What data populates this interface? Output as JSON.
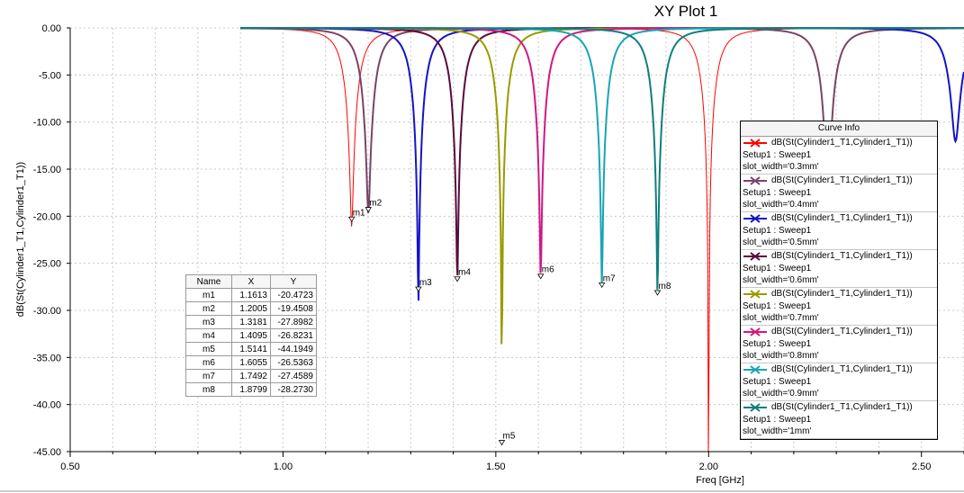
{
  "title": "XY Plot 1",
  "chart_data": {
    "type": "line",
    "xlabel": "Freq [GHz]",
    "ylabel": "dB(St(Cylinder1_T1,Cylinder1_T1))",
    "xlim": [
      0.5,
      2.6
    ],
    "ylim": [
      -45,
      0
    ],
    "x_ticks": [
      "0.50",
      "1.00",
      "1.50",
      "2.00",
      "2.50"
    ],
    "y_ticks": [
      "0.00",
      "-5.00",
      "-10.00",
      "-15.00",
      "-20.00",
      "-25.00",
      "-30.00",
      "-35.00",
      "-40.00",
      "-45.00"
    ],
    "grid": true,
    "x_start": 0.9,
    "x_end": 2.6,
    "series": [
      {
        "color": "#ff0000",
        "resonances": [
          {
            "f": 1.1613,
            "db": -20.4723
          },
          {
            "f": 2.0,
            "db": -33.0
          }
        ]
      },
      {
        "color": "#7a4466",
        "resonances": [
          {
            "f": 1.2005,
            "db": -19.4508
          },
          {
            "f": 2.28,
            "db": -22.0
          }
        ]
      },
      {
        "color": "#1414c8",
        "resonances": [
          {
            "f": 1.3181,
            "db": -27.8982
          },
          {
            "f": 2.58,
            "db": -12.0
          }
        ]
      },
      {
        "color": "#5a0a3c",
        "resonances": [
          {
            "f": 1.4095,
            "db": -26.8231
          }
        ]
      },
      {
        "color": "#9a9a00",
        "resonances": [
          {
            "f": 1.5141,
            "db": -44.1949
          }
        ]
      },
      {
        "color": "#d01882",
        "resonances": [
          {
            "f": 1.6055,
            "db": -26.5363
          }
        ]
      },
      {
        "color": "#18a6b4",
        "resonances": [
          {
            "f": 1.7492,
            "db": -27.4589
          }
        ]
      },
      {
        "color": "#107e7e",
        "resonances": [
          {
            "f": 1.8799,
            "db": -28.273
          }
        ]
      }
    ],
    "markers": [
      {
        "name": "m1",
        "x": "1.1613",
        "y": "-20.4723"
      },
      {
        "name": "m2",
        "x": "1.2005",
        "y": "-19.4508"
      },
      {
        "name": "m3",
        "x": "1.3181",
        "y": "-27.8982"
      },
      {
        "name": "m4",
        "x": "1.4095",
        "y": "-26.8231"
      },
      {
        "name": "m5",
        "x": "1.5141",
        "y": "-44.1949"
      },
      {
        "name": "m6",
        "x": "1.6055",
        "y": "-26.5363"
      },
      {
        "name": "m7",
        "x": "1.7492",
        "y": "-27.4589"
      },
      {
        "name": "m8",
        "x": "1.8799",
        "y": "-28.2730"
      }
    ]
  },
  "marker_table": {
    "headers": [
      "Name",
      "X",
      "Y"
    ]
  },
  "curve_info": {
    "title": "Curve Info",
    "entries": [
      {
        "trace": "dB(St(Cylinder1_T1,Cylinder1_T1))",
        "setup": "Setup1 : Sweep1",
        "variation": "slot_width='0.3mm'",
        "color": "#ff0000"
      },
      {
        "trace": "dB(St(Cylinder1_T1,Cylinder1_T1))",
        "setup": "Setup1 : Sweep1",
        "variation": "slot_width='0.4mm'",
        "color": "#7a4466"
      },
      {
        "trace": "dB(St(Cylinder1_T1,Cylinder1_T1))",
        "setup": "Setup1 : Sweep1",
        "variation": "slot_width='0.5mm'",
        "color": "#1414c8"
      },
      {
        "trace": "dB(St(Cylinder1_T1,Cylinder1_T1))",
        "setup": "Setup1 : Sweep1",
        "variation": "slot_width='0.6mm'",
        "color": "#5a0a3c"
      },
      {
        "trace": "dB(St(Cylinder1_T1,Cylinder1_T1))",
        "setup": "Setup1 : Sweep1",
        "variation": "slot_width='0.7mm'",
        "color": "#9a9a00"
      },
      {
        "trace": "dB(St(Cylinder1_T1,Cylinder1_T1))",
        "setup": "Setup1 : Sweep1",
        "variation": "slot_width='0.8mm'",
        "color": "#d01882"
      },
      {
        "trace": "dB(St(Cylinder1_T1,Cylinder1_T1))",
        "setup": "Setup1 : Sweep1",
        "variation": "slot_width='0.9mm'",
        "color": "#18a6b4"
      },
      {
        "trace": "dB(St(Cylinder1_T1,Cylinder1_T1))",
        "setup": "Setup1 : Sweep1",
        "variation": "slot_width='1mm'",
        "color": "#107e7e"
      }
    ]
  }
}
